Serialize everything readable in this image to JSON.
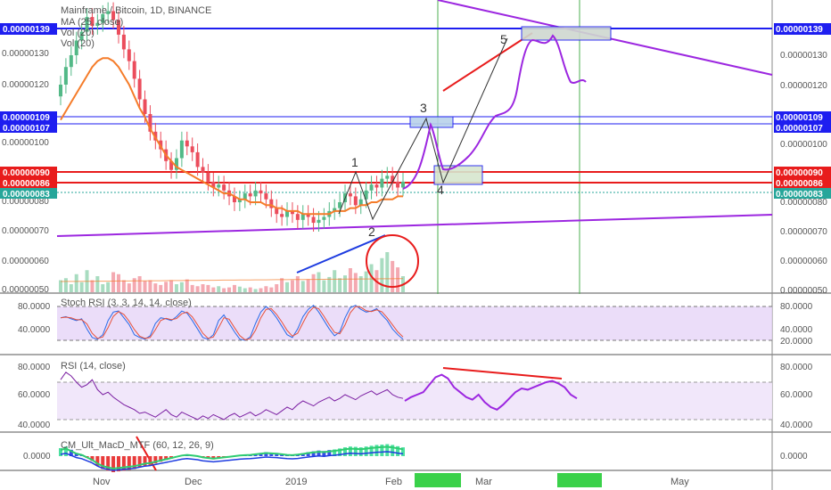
{
  "header": {
    "symbol_line": "Mainframe / Bitcoin, 1D, BINANCE",
    "ma_label": "MA (25, close)",
    "vol1_label": "Vol (20)",
    "vol2_label": "Vol (20)"
  },
  "colors": {
    "up": "#53b987",
    "down": "#eb4d5c",
    "ma": "#f57c2a",
    "projection": "#9c27e0",
    "blue_line": "#1e1ef0",
    "red_line": "#e81c1c",
    "green_vline": "#4caf50",
    "rsi_line": "#7b1fa2"
  },
  "price_axis": {
    "ticks": [
      "0.00000130",
      "0.00000120",
      "0.00000100",
      "0.00000080",
      "0.00000070",
      "0.00000060",
      "0.00000050"
    ],
    "left_ticks": [
      "0.00000130",
      "0.00000120",
      "0.00000100",
      "0.00000080",
      "0.00000070",
      "0.00000060",
      "0.00000050"
    ],
    "levels": [
      {
        "label": "0.00000139",
        "color": "#1e1ef0"
      },
      {
        "label": "0.00000109",
        "color": "#1e1ef0"
      },
      {
        "label": "0.00000107",
        "color": "#1e1ef0"
      },
      {
        "label": "0.00000090",
        "color": "#e81c1c"
      },
      {
        "label": "0.00000086",
        "color": "#e81c1c"
      },
      {
        "label": "0.00000083",
        "color": "#26a69a"
      }
    ]
  },
  "wave_labels": [
    "1",
    "2",
    "3",
    "4",
    "5"
  ],
  "stoch": {
    "label": "Stoch RSI (3, 3, 14, 14, close)",
    "ticks": [
      "80.0000",
      "40.0000",
      "20.0000"
    ],
    "left_ticks": [
      "80.0000",
      "40.0000"
    ]
  },
  "rsi": {
    "label": "RSI (14, close)",
    "ticks": [
      "80.0000",
      "60.0000",
      "40.0000"
    ],
    "left_ticks": [
      "80.0000",
      "60.0000",
      "40.0000"
    ]
  },
  "macd": {
    "label": "CM_Ult_MacD_MTF (60, 12, 26, 9)",
    "ticks": [
      "0.0000"
    ],
    "left_ticks": [
      "0.0000"
    ]
  },
  "time_axis": {
    "labels": [
      "Nov",
      "Dec",
      "2019",
      "Feb",
      "Mar",
      "May"
    ]
  },
  "chart_data": {
    "type": "candlestick",
    "title": "Mainframe / Bitcoin, 1D, BINANCE",
    "x_labels": [
      "Nov",
      "Dec",
      "2019",
      "Feb",
      "Mar",
      "May"
    ],
    "ylim": [
      5e-07,
      1.45e-06
    ],
    "horizontal_levels": [
      1.39e-06,
      1.09e-06,
      1.07e-06,
      9e-07,
      8.6e-07,
      8.3e-07
    ],
    "closes": [
      1.2,
      1.26,
      1.3,
      1.35,
      1.38,
      1.43,
      1.4,
      1.41,
      1.44,
      1.45,
      1.42,
      1.37,
      1.32,
      1.28,
      1.22,
      1.15,
      1.1,
      1.04,
      1.01,
      0.98,
      0.94,
      0.91,
      0.95,
      1.01,
      0.99,
      0.97,
      0.92,
      0.9,
      0.87,
      0.85,
      0.86,
      0.84,
      0.82,
      0.8,
      0.81,
      0.83,
      0.82,
      0.84,
      0.83,
      0.81,
      0.78,
      0.76,
      0.75,
      0.77,
      0.76,
      0.74,
      0.76,
      0.75,
      0.73,
      0.74,
      0.75,
      0.77,
      0.78,
      0.8,
      0.83,
      0.82,
      0.79,
      0.81,
      0.84,
      0.86,
      0.85,
      0.88,
      0.89,
      0.87,
      0.85,
      0.87
    ],
    "ma25": [
      1.08,
      1.11,
      1.14,
      1.17,
      1.2,
      1.23,
      1.26,
      1.28,
      1.29,
      1.29,
      1.28,
      1.26,
      1.23,
      1.2,
      1.16,
      1.12,
      1.09,
      1.05,
      1.02,
      0.99,
      0.96,
      0.94,
      0.92,
      0.91,
      0.9,
      0.89,
      0.88,
      0.87,
      0.86,
      0.85,
      0.84,
      0.83,
      0.83,
      0.82,
      0.81,
      0.81,
      0.8,
      0.8,
      0.8,
      0.79,
      0.79,
      0.78,
      0.78,
      0.77,
      0.77,
      0.77,
      0.76,
      0.76,
      0.76,
      0.76,
      0.76,
      0.76,
      0.77,
      0.77,
      0.77,
      0.78,
      0.78,
      0.79,
      0.79,
      0.8,
      0.8,
      0.81,
      0.81,
      0.81,
      0.82,
      0.82
    ],
    "volumes": [
      0.3,
      0.35,
      0.2,
      0.45,
      0.25,
      0.55,
      0.3,
      0.4,
      0.2,
      0.25,
      0.5,
      0.45,
      0.3,
      0.22,
      0.35,
      0.4,
      0.28,
      0.3,
      0.22,
      0.18,
      0.26,
      0.3,
      0.2,
      0.25,
      0.32,
      0.18,
      0.15,
      0.2,
      0.18,
      0.12,
      0.15,
      0.1,
      0.12,
      0.18,
      0.14,
      0.1,
      0.12,
      0.08,
      0.1,
      0.15,
      0.12,
      0.2,
      0.35,
      0.25,
      0.3,
      0.4,
      0.28,
      0.32,
      0.45,
      0.5,
      0.3,
      0.38,
      0.55,
      0.35,
      0.42,
      0.6,
      0.48,
      0.4,
      0.52,
      0.7,
      0.55,
      0.85,
      1.0,
      0.78,
      0.62,
      0.4
    ],
    "rsi": [
      72,
      78,
      75,
      70,
      66,
      68,
      72,
      64,
      60,
      62,
      58,
      55,
      52,
      50,
      48,
      45,
      46,
      44,
      42,
      45,
      48,
      44,
      42,
      46,
      44,
      42,
      40,
      43,
      41,
      44,
      42,
      40,
      43,
      45,
      42,
      44,
      46,
      43,
      45,
      48,
      46,
      44,
      47,
      50,
      48,
      52,
      55,
      53,
      51,
      54,
      56,
      58,
      55,
      57,
      60,
      58,
      56,
      59,
      61,
      63,
      60,
      62,
      64,
      60,
      58,
      57
    ],
    "rsi_projection": [
      55,
      58,
      60,
      62,
      68,
      74,
      76,
      73,
      66,
      62,
      58,
      56,
      60,
      54,
      50,
      48,
      52,
      57,
      62,
      65,
      64,
      66,
      68,
      70,
      71,
      69,
      66,
      60,
      57
    ],
    "stoch": [
      60,
      62,
      58,
      55,
      58,
      40,
      25,
      22,
      30,
      55,
      70,
      72,
      60,
      48,
      30,
      25,
      22,
      28,
      50,
      60,
      58,
      55,
      62,
      72,
      68,
      55,
      40,
      25,
      22,
      30,
      55,
      65,
      50,
      35,
      22,
      20,
      26,
      50,
      70,
      80,
      72,
      60,
      45,
      30,
      25,
      40,
      62,
      75,
      82,
      70,
      55,
      40,
      28,
      35,
      60,
      78,
      82,
      75,
      70,
      72,
      76,
      65,
      55,
      40,
      30,
      22
    ],
    "macd_hist": [
      0.5,
      0.6,
      0.4,
      0.2,
      0.1,
      -0.1,
      -0.3,
      -0.6,
      -0.8,
      -0.9,
      -1.0,
      -0.95,
      -0.9,
      -0.85,
      -0.8,
      -0.7,
      -0.6,
      -0.55,
      -0.45,
      -0.35,
      -0.25,
      -0.15,
      -0.05,
      0.05,
      0.1,
      0.05,
      0.0,
      -0.1,
      -0.15,
      -0.2,
      -0.15,
      -0.1,
      -0.05,
      0.0,
      0.05,
      0.08,
      0.1,
      0.15,
      0.2,
      0.25,
      0.22,
      0.2,
      0.15,
      0.1,
      0.08,
      0.12,
      0.18,
      0.25,
      0.3,
      0.35,
      0.32,
      0.38,
      0.42,
      0.48,
      0.55,
      0.6,
      0.58,
      0.55,
      0.6,
      0.65,
      0.7,
      0.72,
      0.75,
      0.7,
      0.62,
      0.55
    ]
  }
}
